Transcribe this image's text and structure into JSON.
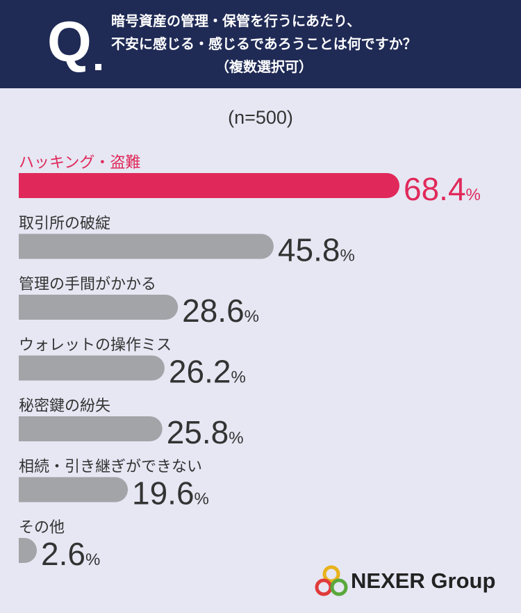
{
  "header": {
    "q_letter": "Q",
    "question_line1": "暗号資産の管理・保管を行うにあたり、",
    "question_line2": "不安に感じる・感じるであろうことは何ですか？",
    "question_line3": "（複数選択可）"
  },
  "sample_label": "(n=500)",
  "logo": {
    "text": "NEXER Group",
    "icon": "three-rings-logo-icon"
  },
  "colors": {
    "highlight": "#e0295a",
    "bar": "#a3a4a8",
    "header_bg": "#1f2a55",
    "background": "#e6e7f3"
  },
  "chart_data": {
    "type": "bar",
    "orientation": "horizontal",
    "unit": "%",
    "xlim": [
      0,
      100
    ],
    "categories": [
      "ハッキング・盗難",
      "取引所の破綻",
      "管理の手間がかかる",
      "ウォレットの操作ミス",
      "秘密鍵の紛失",
      "相続・引き継ぎができない",
      "その他"
    ],
    "values": [
      68.4,
      45.8,
      28.6,
      26.2,
      25.8,
      19.6,
      2.6
    ],
    "highlight_index": 0
  }
}
